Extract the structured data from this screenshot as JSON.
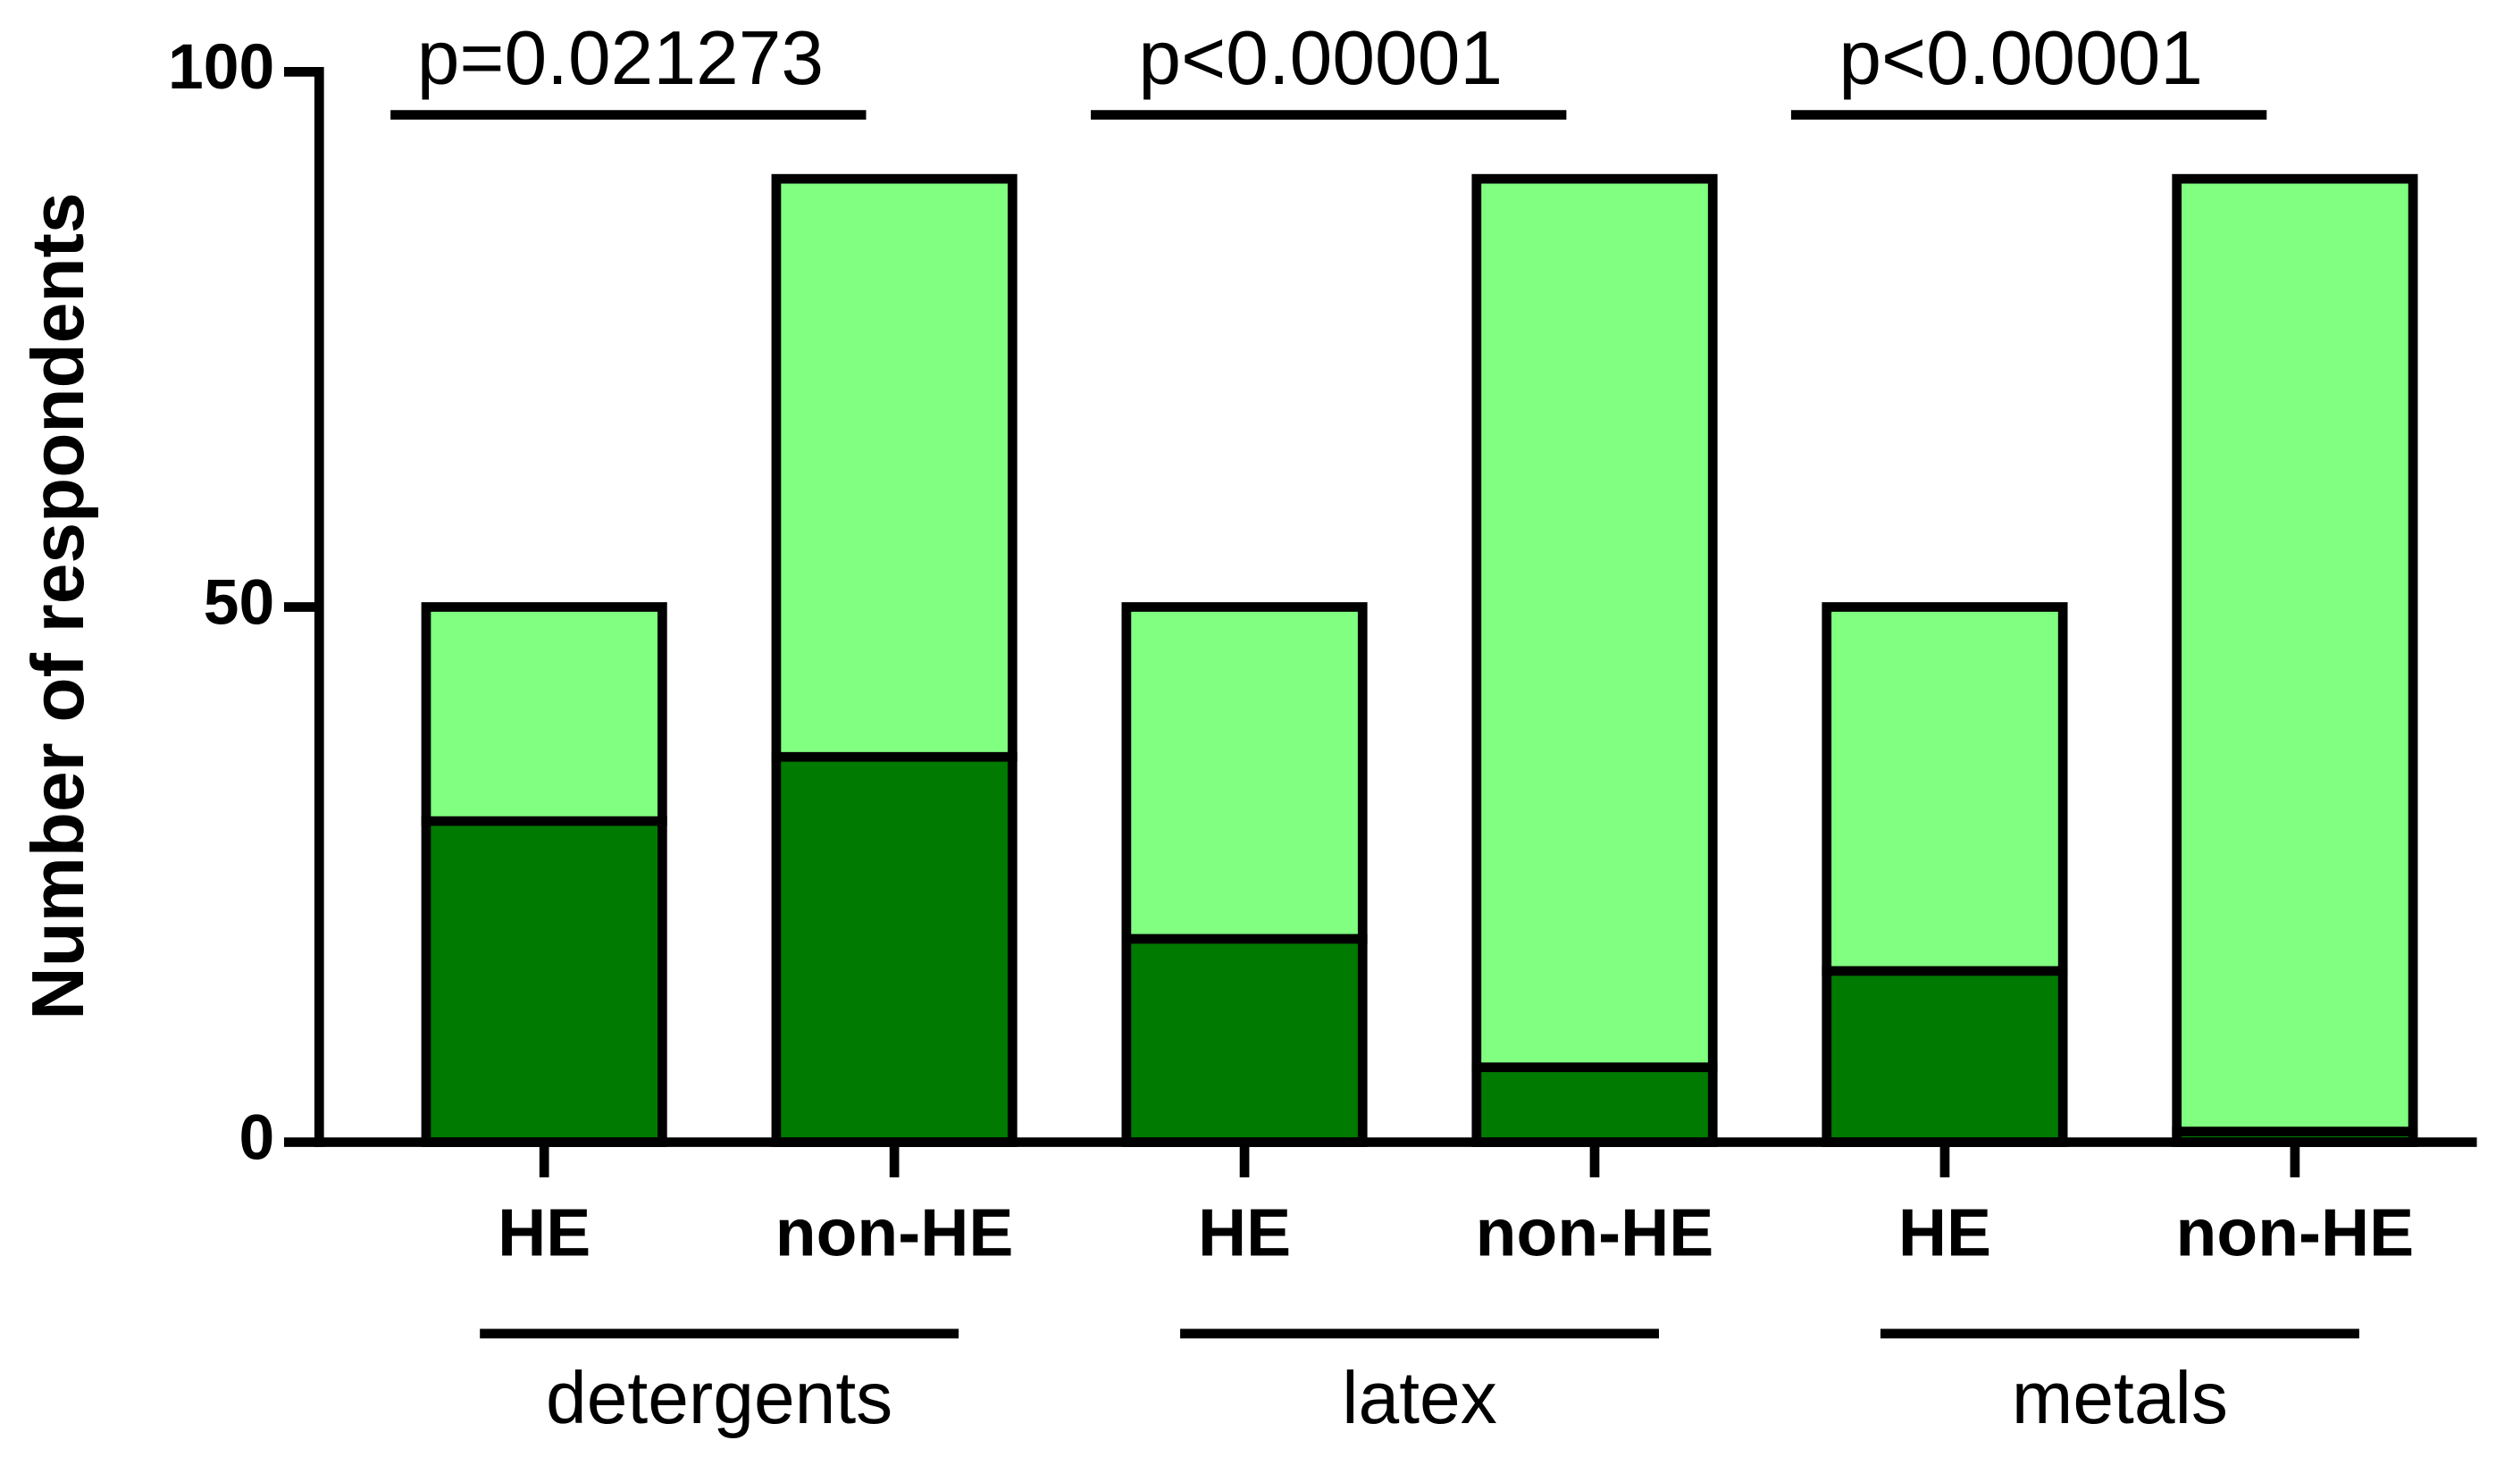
{
  "chart_data": {
    "type": "bar",
    "stacked": true,
    "y_label": "Number of respondents",
    "categories": [
      "HE",
      "non-HE",
      "HE",
      "non-HE",
      "HE",
      "non-HE"
    ],
    "groups": [
      "detergents",
      "latex",
      "metals"
    ],
    "annotations": [
      "p=0.021273",
      "p<0.00001",
      "p<0.00001"
    ],
    "series": [
      {
        "color": "#007a00",
        "values": [
          30,
          36,
          19,
          7,
          16,
          1
        ]
      },
      {
        "color": "#80ff80",
        "values": [
          20,
          54,
          31,
          83,
          34,
          89
        ]
      }
    ],
    "ylim": [
      0,
      100
    ],
    "yticks": [
      0,
      50,
      100
    ]
  }
}
